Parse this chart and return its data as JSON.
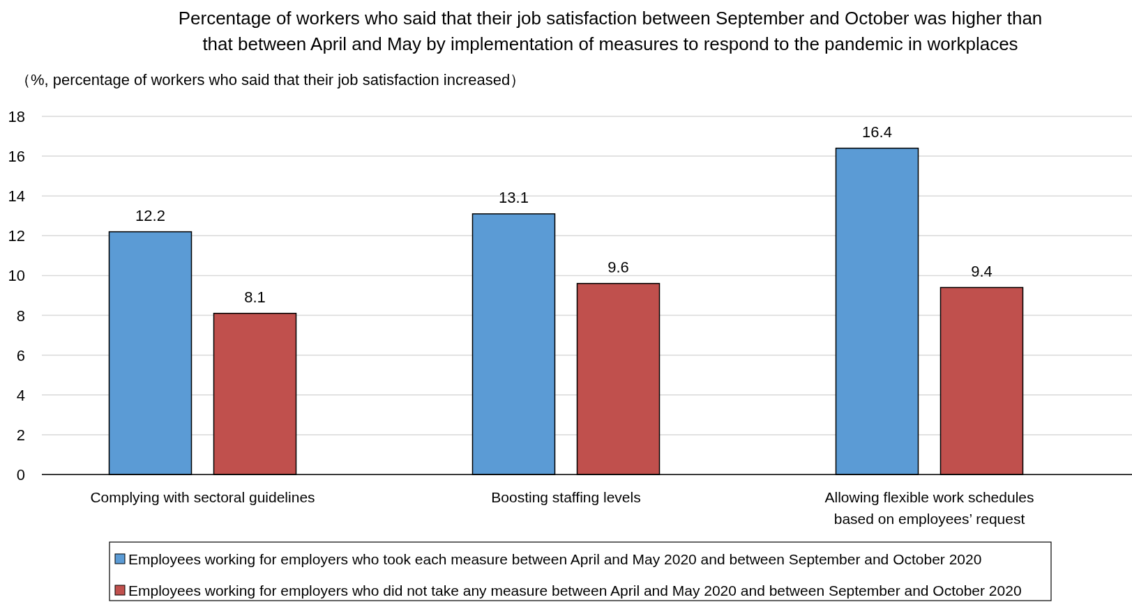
{
  "chart_data": {
    "type": "bar",
    "title": "Percentage of workers who said that their job satisfaction between September and October was higher than\nthat between April and May by implementation of measures to respond to the pandemic in workplaces",
    "ylabel": "（%, percentage of workers who said that their job satisfaction increased）",
    "categories": [
      "Complying with sectoral guidelines",
      "Boosting staffing levels",
      "Allowing flexible work schedules\nbased on employees’ request"
    ],
    "series": [
      {
        "name": "Employees working for employers who took each measure between April and May 2020 and between September and October 2020",
        "color": "#5b9bd5",
        "values": [
          12.2,
          13.1,
          16.4
        ]
      },
      {
        "name": "Employees working for employers who did not take any measure between April and May 2020 and between September and October 2020",
        "color": "#c0504d",
        "values": [
          8.1,
          9.6,
          9.4
        ]
      }
    ],
    "ylim": [
      0,
      18
    ],
    "yticks": [
      0,
      2,
      4,
      6,
      8,
      10,
      12,
      14,
      16,
      18
    ],
    "grid": "y",
    "legend": "bottom",
    "data_labels": true
  }
}
